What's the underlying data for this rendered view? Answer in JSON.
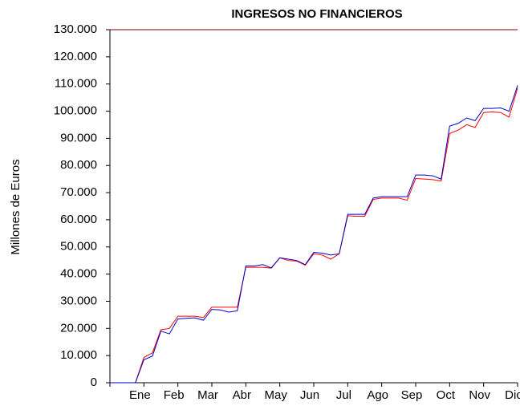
{
  "chart_data": {
    "type": "line",
    "title": "INGRESOS NO FINANCIEROS",
    "ylabel": "Millones de Euros",
    "categories": [
      null,
      null,
      null,
      null,
      "Ene",
      null,
      null,
      null,
      "Feb",
      null,
      null,
      null,
      "Mar",
      null,
      null,
      null,
      "Abr",
      null,
      null,
      null,
      "May",
      null,
      null,
      null,
      "Jun",
      null,
      null,
      null,
      "Jul",
      null,
      null,
      null,
      "Ago",
      null,
      null,
      null,
      "Sep",
      null,
      null,
      null,
      "Oct",
      null,
      null,
      null,
      "Nov",
      null,
      null,
      null,
      "Dic"
    ],
    "series": [
      {
        "color": "#0000cc",
        "values": [
          0,
          0,
          0,
          0,
          8500,
          9800,
          19000,
          18000,
          23500,
          23700,
          23900,
          23000,
          27000,
          26800,
          26000,
          26500,
          43000,
          43000,
          43500,
          42300,
          46000,
          45500,
          45000,
          43500,
          48000,
          47700,
          47000,
          47500,
          62000,
          62000,
          62000,
          68000,
          68500,
          68500,
          68500,
          68500,
          76500,
          76500,
          76200,
          75000,
          94500,
          95500,
          97500,
          96500,
          101000,
          101000,
          101200,
          100000,
          109500
        ]
      },
      {
        "color": "#ff0000",
        "values": [
          0,
          0,
          0,
          0,
          9300,
          11000,
          19500,
          20000,
          24500,
          24500,
          24500,
          24000,
          27800,
          27800,
          27800,
          27800,
          42500,
          42500,
          42500,
          42200,
          46000,
          45000,
          44800,
          43300,
          47500,
          47000,
          45500,
          47500,
          61500,
          61300,
          61300,
          67500,
          68000,
          68000,
          68000,
          67200,
          75200,
          75000,
          74800,
          74300,
          91800,
          93000,
          95000,
          94000,
          99500,
          99700,
          99500,
          97800,
          108500
        ]
      }
    ],
    "ylim": [
      0,
      130000
    ],
    "yticks": [
      0,
      {
        "value": 10000,
        "label": "10.000"
      },
      {
        "value": 20000,
        "label": "20.000"
      },
      {
        "value": 30000,
        "label": "30.000"
      },
      {
        "value": 40000,
        "label": "40.000"
      },
      {
        "value": 50000,
        "label": "50.000"
      },
      {
        "value": 60000,
        "label": "60.000"
      },
      {
        "value": 70000,
        "label": "70.000"
      },
      {
        "value": 80000,
        "label": "80.000"
      },
      {
        "value": 90000,
        "label": "90.000"
      },
      {
        "value": 100000,
        "label": "100.000"
      },
      {
        "value": 110000,
        "label": "110.000"
      },
      {
        "value": 120000,
        "label": "120.000"
      },
      {
        "value": 130000,
        "label": "130.000"
      }
    ]
  }
}
